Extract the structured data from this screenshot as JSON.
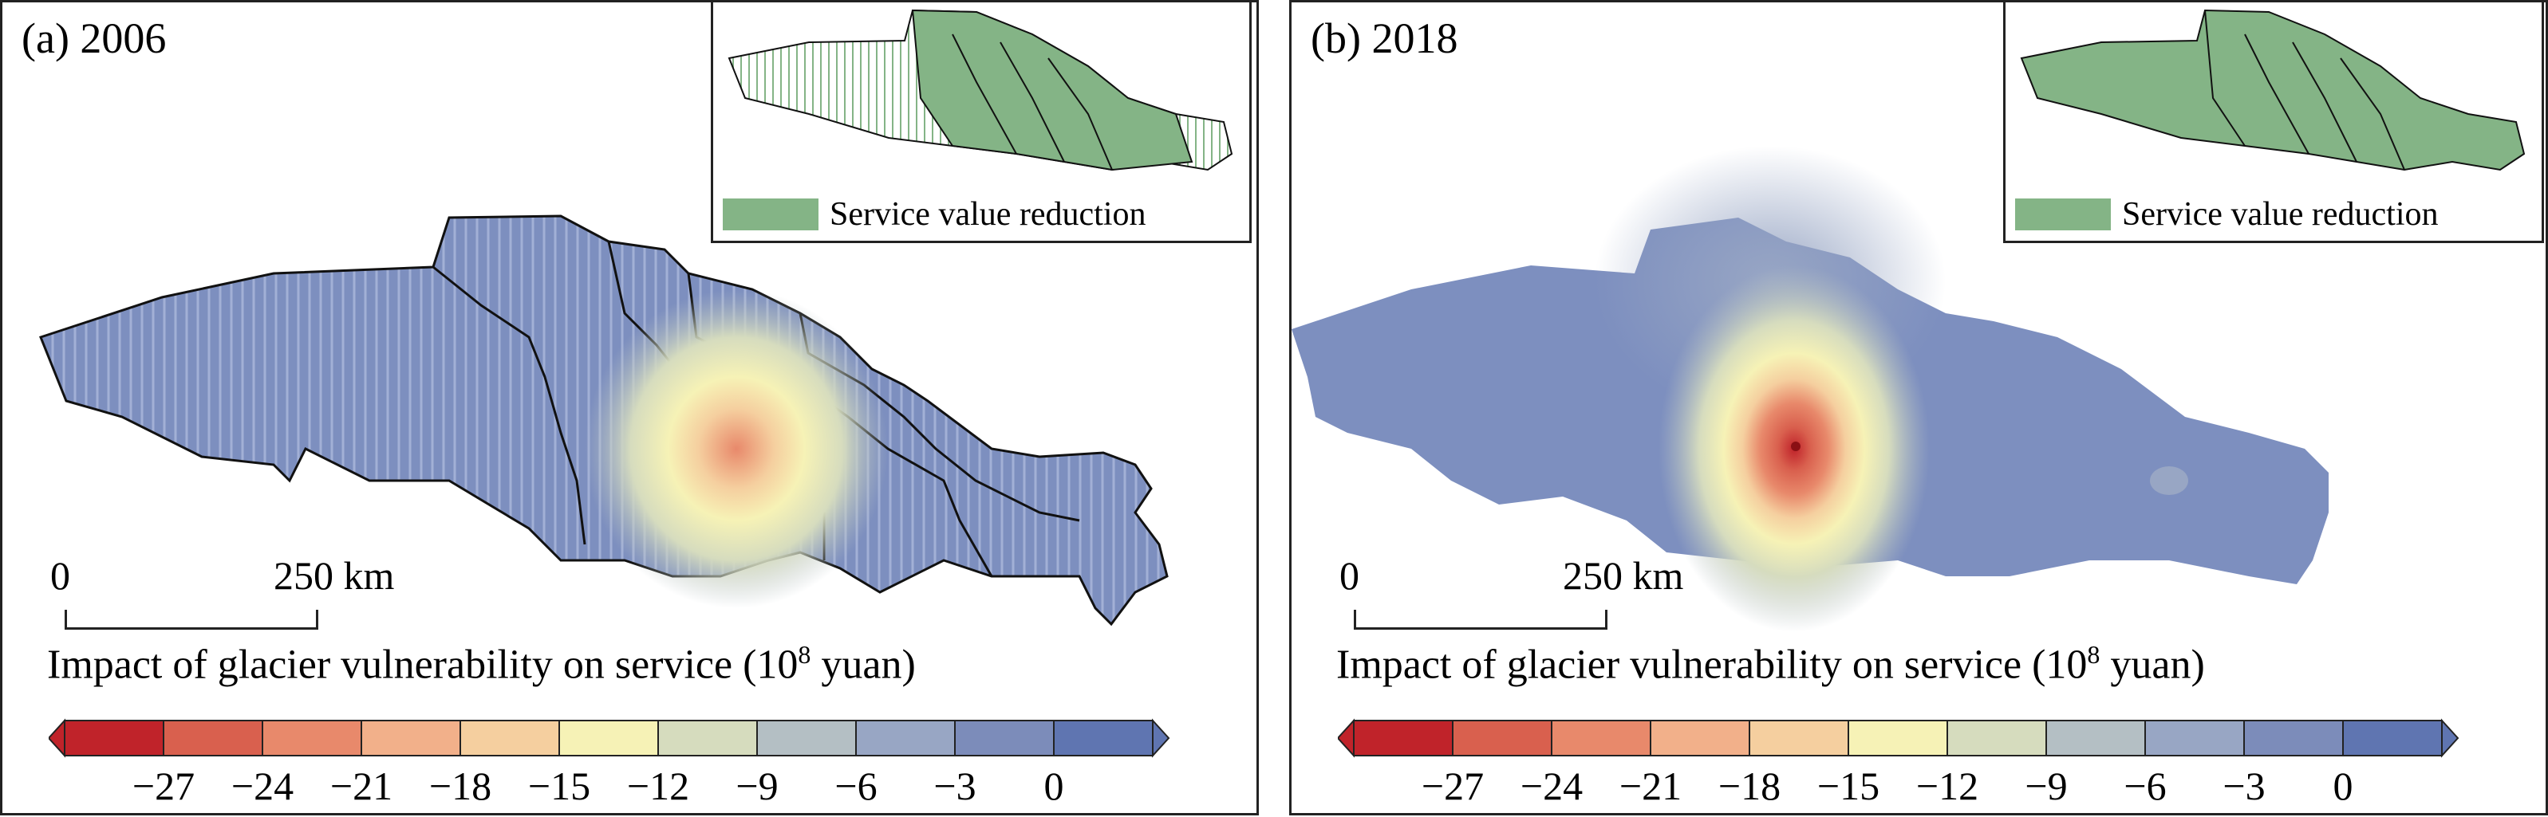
{
  "panels": [
    {
      "label": "(a) 2006",
      "inset_legend": "Service value reduction",
      "scale": {
        "zero": "0",
        "distance": "250 km"
      },
      "legend_title": "Impact of glacier vulnerability on service (10",
      "legend_title_sup": "8",
      "legend_title_end": " yuan)",
      "ticks": [
        "−27",
        "−24",
        "−21",
        "−18",
        "−15",
        "−12",
        "−9",
        "−6",
        "−3",
        "0"
      ]
    },
    {
      "label": "(b) 2018",
      "inset_legend": "Service value reduction",
      "scale": {
        "zero": "0",
        "distance": "250 km"
      },
      "legend_title": "Impact of glacier vulnerability on service (10",
      "legend_title_sup": "8",
      "legend_title_end": " yuan)",
      "ticks": [
        "−27",
        "−24",
        "−21",
        "−18",
        "−15",
        "−12",
        "−9",
        "−6",
        "−3",
        "0"
      ]
    }
  ],
  "colors": {
    "classes": [
      "#c0232a",
      "#d9604e",
      "#e8896b",
      "#f2b08a",
      "#f5cf9f",
      "#f6f2b6",
      "#d6dcbe",
      "#b4bfc4",
      "#98a6c4",
      "#7c8cba",
      "#5f75b1"
    ],
    "inset_green": "#84b486",
    "map_base": "#7d8fbf"
  }
}
